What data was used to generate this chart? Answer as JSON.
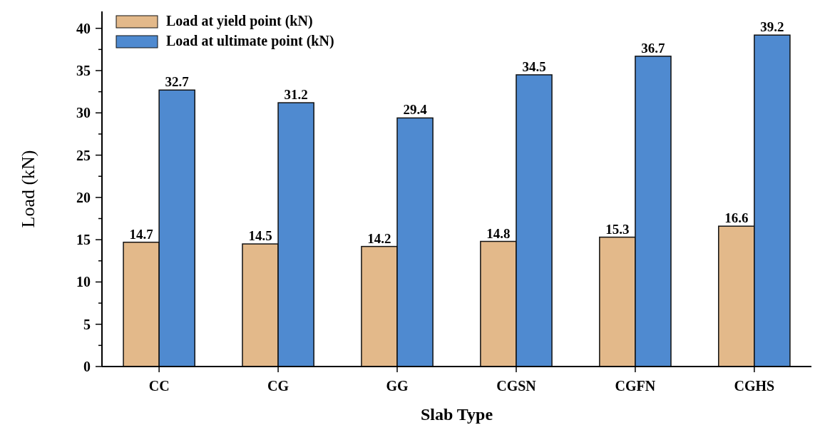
{
  "chart_data": {
    "type": "bar",
    "xlabel": "Slab Type",
    "ylabel": "Load (kN)",
    "categories": [
      "CC",
      "CG",
      "GG",
      "CGSN",
      "CGFN",
      "CGHS"
    ],
    "series": [
      {
        "name": "Load at yield point (kN)",
        "color": "#e3b98a",
        "values": [
          14.7,
          14.5,
          14.2,
          14.8,
          15.3,
          16.6
        ]
      },
      {
        "name": "Load at ultimate point (kN)",
        "color": "#4f8ad0",
        "values": [
          32.7,
          31.2,
          29.4,
          34.5,
          36.7,
          39.2
        ]
      }
    ],
    "ylim": [
      0,
      42
    ],
    "yticks": [
      0,
      {
        "value": 2.5,
        "label": null
      },
      5,
      {
        "value": 7.5,
        "label": null
      },
      10,
      {
        "value": 12.5,
        "label": null
      },
      15,
      {
        "value": 17.5,
        "label": null
      },
      20,
      {
        "value": 22.5,
        "label": null
      },
      25,
      {
        "value": 27.5,
        "label": null
      },
      30,
      {
        "value": 32.5,
        "label": null
      },
      35,
      {
        "value": 37.5,
        "label": null
      },
      40
    ],
    "data_labels": true,
    "legend": "top left",
    "grid": false
  }
}
